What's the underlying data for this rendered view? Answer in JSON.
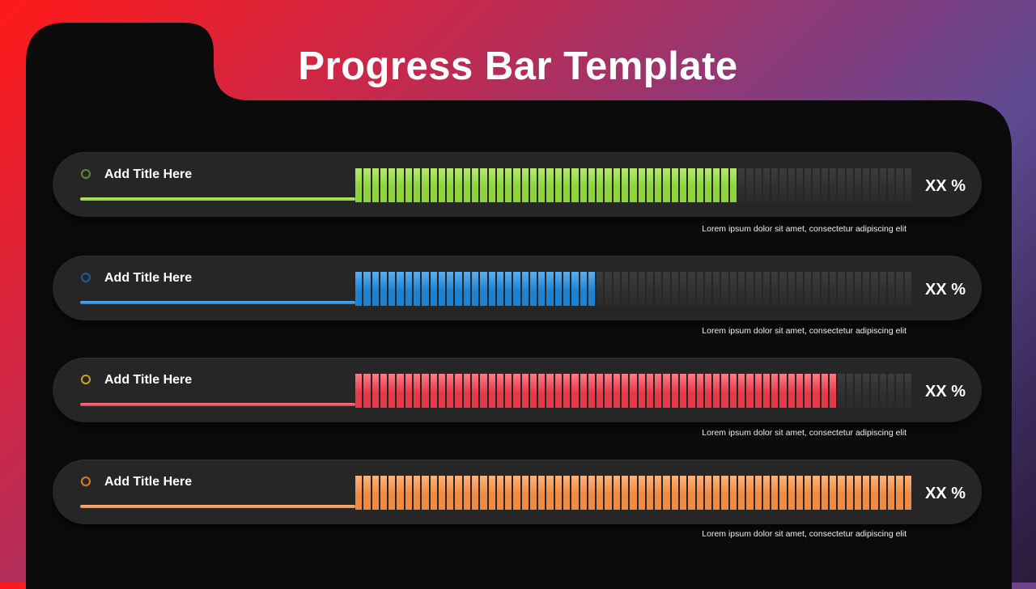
{
  "title": "Progress Bar Template",
  "rows": [
    {
      "title": "Add Title Here",
      "value_label": "XX %",
      "description": "Lorem ipsum dolor sit amet, consectetur adipiscing elit",
      "progress": 0.69,
      "color": "#8cd43a",
      "color_light": "#b6ea6e",
      "dot_color": "#5a8a3a"
    },
    {
      "title": "Add Title Here",
      "value_label": "XX %",
      "description": "Lorem ipsum dolor sit amet, consectetur adipiscing elit",
      "progress": 0.44,
      "color": "#1e82d2",
      "color_light": "#5ab0f0",
      "dot_color": "#1a5e9a"
    },
    {
      "title": "Add Title Here",
      "value_label": "XX %",
      "description": "Lorem ipsum dolor sit amet, consectetur adipiscing elit",
      "progress": 0.86,
      "color": "#e63a4a",
      "color_light": "#ff7a86",
      "dot_color": "#d4a020"
    },
    {
      "title": "Add Title Here",
      "value_label": "XX %",
      "description": "Lorem ipsum dolor sit amet, consectetur adipiscing elit",
      "progress": 1.0,
      "color": "#f08a40",
      "color_light": "#ffb27a",
      "dot_color": "#e07a30"
    }
  ]
}
